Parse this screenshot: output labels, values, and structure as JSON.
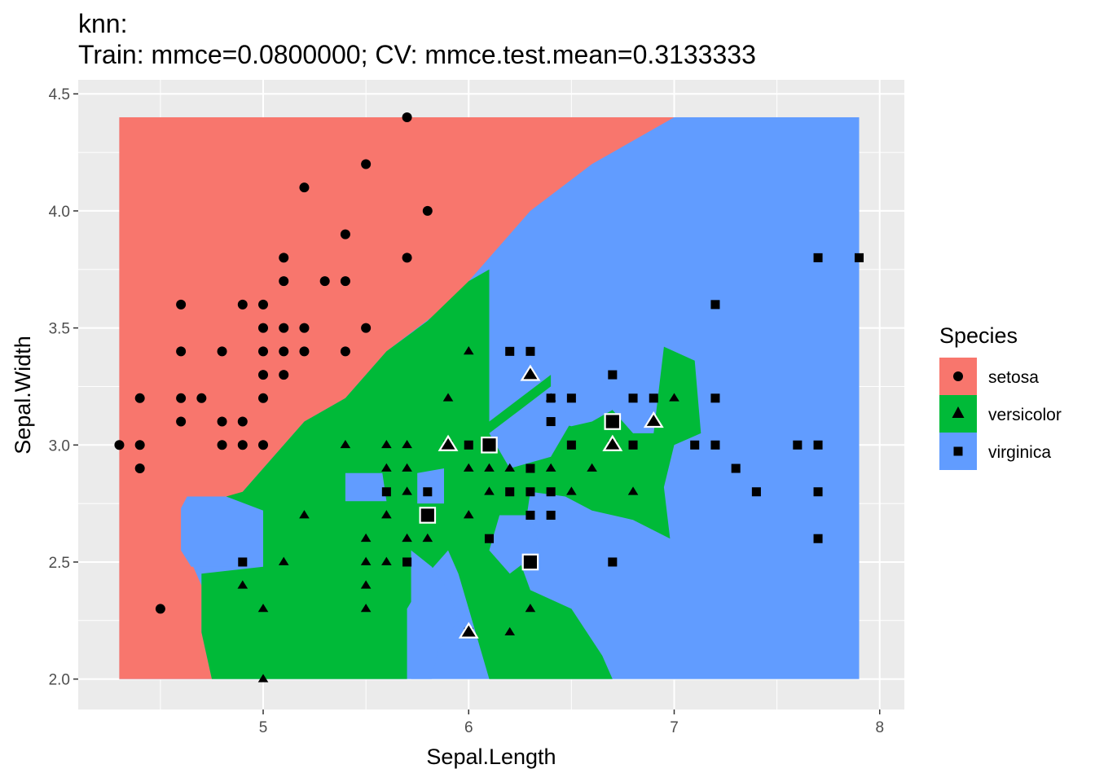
{
  "chart_data": {
    "type": "scatter",
    "title": "knn:",
    "subtitle": "Train: mmce=0.0800000; CV: mmce.test.mean=0.3133333",
    "xlabel": "Sepal.Length",
    "ylabel": "Sepal.Width",
    "xlim": [
      4.1,
      8.12
    ],
    "ylim": [
      1.87,
      4.56
    ],
    "xticks": [
      5,
      6,
      7,
      8
    ],
    "xtick_labels": [
      "5",
      "6",
      "7",
      "8"
    ],
    "yticks": [
      2.0,
      2.5,
      3.0,
      3.5,
      4.0,
      4.5
    ],
    "ytick_labels": [
      "2.0",
      "2.5",
      "3.0",
      "3.5",
      "4.0",
      "4.5"
    ],
    "grid": true,
    "legend": {
      "title": "Species",
      "position": "right",
      "entries": [
        {
          "label": "setosa",
          "color": "#F8766D",
          "shape": "circle"
        },
        {
          "label": "versicolor",
          "color": "#00BA38",
          "shape": "triangle"
        },
        {
          "label": "virginica",
          "color": "#619CFF",
          "shape": "square"
        }
      ]
    },
    "colors": {
      "setosa": "#F8766D",
      "versicolor": "#00BA38",
      "virginica": "#619CFF",
      "panel": "#EBEBEB",
      "grid": "#FFFFFF"
    },
    "decision_regions": {
      "x_range": [
        4.3,
        7.9
      ],
      "y_range": [
        2.0,
        4.4
      ],
      "setosa_boundary": [
        [
          7.0,
          4.4
        ],
        [
          6.6,
          4.2
        ],
        [
          6.3,
          4.0
        ],
        [
          6.1,
          3.8
        ],
        [
          5.9,
          3.6
        ],
        [
          5.6,
          3.4
        ],
        [
          5.4,
          3.2
        ],
        [
          5.2,
          3.1
        ],
        [
          5.0,
          2.9
        ],
        [
          4.9,
          2.8
        ],
        [
          4.7,
          2.7
        ],
        [
          4.6,
          2.6
        ],
        [
          4.7,
          2.4
        ],
        [
          4.7,
          2.2
        ],
        [
          4.75,
          2.0
        ]
      ],
      "setosa_holes": [
        [
          [
            4.6,
            2.73
          ],
          [
            4.63,
            2.78
          ],
          [
            4.82,
            2.78
          ],
          [
            5.0,
            2.72
          ],
          [
            5.0,
            2.48
          ],
          [
            4.65,
            2.48
          ],
          [
            4.6,
            2.55
          ]
        ]
      ],
      "versicolor_regions": [
        [
          [
            4.75,
            2.0
          ],
          [
            4.7,
            2.2
          ],
          [
            4.7,
            2.45
          ],
          [
            5.0,
            2.48
          ],
          [
            5.0,
            2.72
          ],
          [
            4.82,
            2.78
          ],
          [
            4.9,
            2.8
          ],
          [
            5.0,
            2.9
          ],
          [
            5.2,
            3.1
          ],
          [
            5.4,
            3.2
          ],
          [
            5.6,
            3.4
          ],
          [
            5.8,
            3.53
          ],
          [
            6.0,
            3.7
          ],
          [
            6.1,
            3.75
          ],
          [
            6.1,
            3.1
          ],
          [
            6.25,
            3.2
          ],
          [
            6.4,
            3.3
          ],
          [
            6.4,
            3.1
          ],
          [
            6.5,
            3.08
          ],
          [
            6.6,
            3.1
          ],
          [
            6.7,
            3.15
          ],
          [
            6.8,
            3.05
          ],
          [
            6.9,
            3.05
          ],
          [
            6.95,
            3.42
          ],
          [
            7.1,
            3.36
          ],
          [
            7.13,
            3.05
          ],
          [
            7.0,
            3.0
          ],
          [
            6.95,
            2.82
          ],
          [
            6.98,
            2.6
          ],
          [
            6.8,
            2.68
          ],
          [
            6.6,
            2.72
          ],
          [
            6.47,
            2.78
          ],
          [
            6.3,
            2.8
          ],
          [
            6.25,
            2.5
          ],
          [
            6.3,
            2.38
          ],
          [
            6.5,
            2.3
          ],
          [
            6.65,
            2.1
          ],
          [
            6.7,
            2.0
          ],
          [
            6.1,
            2.0
          ],
          [
            6.0,
            2.3
          ],
          [
            5.95,
            2.45
          ],
          [
            5.9,
            2.55
          ],
          [
            5.8,
            2.45
          ],
          [
            5.7,
            2.3
          ],
          [
            5.7,
            2.0
          ]
        ],
        [
          [
            5.75,
            2.83
          ],
          [
            5.9,
            2.98
          ],
          [
            6.05,
            2.98
          ],
          [
            6.05,
            2.75
          ],
          [
            5.95,
            2.62
          ],
          [
            5.85,
            2.62
          ],
          [
            5.75,
            2.7
          ]
        ]
      ],
      "virginica_islands": [
        [
          [
            5.75,
            2.88
          ],
          [
            5.88,
            2.9
          ],
          [
            5.88,
            2.75
          ],
          [
            5.75,
            2.75
          ]
        ],
        [
          [
            5.4,
            2.88
          ],
          [
            5.58,
            2.88
          ],
          [
            5.6,
            2.76
          ],
          [
            5.4,
            2.76
          ]
        ],
        [
          [
            5.72,
            2.55
          ],
          [
            5.72,
            2.0
          ],
          [
            5.82,
            2.0
          ],
          [
            5.85,
            2.12
          ],
          [
            5.95,
            2.25
          ],
          [
            5.9,
            2.38
          ],
          [
            5.82,
            2.48
          ]
        ],
        [
          [
            6.15,
            2.7
          ],
          [
            6.3,
            2.7
          ],
          [
            6.35,
            2.55
          ],
          [
            6.2,
            2.45
          ],
          [
            6.1,
            2.55
          ]
        ],
        [
          [
            6.1,
            3.05
          ],
          [
            6.25,
            3.15
          ],
          [
            6.4,
            3.25
          ],
          [
            6.5,
            3.1
          ],
          [
            6.4,
            2.95
          ],
          [
            6.2,
            2.9
          ]
        ]
      ]
    },
    "series": [
      {
        "name": "setosa",
        "shape": "circle",
        "points": [
          [
            4.3,
            3.0
          ],
          [
            4.4,
            3.2
          ],
          [
            4.4,
            3.0
          ],
          [
            4.4,
            2.9
          ],
          [
            4.5,
            2.3
          ],
          [
            4.6,
            3.6
          ],
          [
            4.6,
            3.4
          ],
          [
            4.6,
            3.2
          ],
          [
            4.6,
            3.1
          ],
          [
            4.7,
            3.2
          ],
          [
            4.8,
            3.4
          ],
          [
            4.8,
            3.1
          ],
          [
            4.8,
            3.0
          ],
          [
            4.9,
            3.6
          ],
          [
            4.9,
            3.1
          ],
          [
            4.9,
            3.0
          ],
          [
            5.0,
            3.6
          ],
          [
            5.0,
            3.5
          ],
          [
            5.0,
            3.4
          ],
          [
            5.0,
            3.3
          ],
          [
            5.0,
            3.2
          ],
          [
            5.0,
            3.0
          ],
          [
            5.1,
            3.8
          ],
          [
            5.1,
            3.7
          ],
          [
            5.1,
            3.5
          ],
          [
            5.1,
            3.4
          ],
          [
            5.1,
            3.3
          ],
          [
            5.2,
            4.1
          ],
          [
            5.2,
            3.5
          ],
          [
            5.2,
            3.4
          ],
          [
            5.3,
            3.7
          ],
          [
            5.4,
            3.9
          ],
          [
            5.4,
            3.7
          ],
          [
            5.4,
            3.4
          ],
          [
            5.5,
            4.2
          ],
          [
            5.5,
            3.5
          ],
          [
            5.7,
            4.4
          ],
          [
            5.7,
            3.8
          ],
          [
            5.8,
            4.0
          ]
        ]
      },
      {
        "name": "versicolor",
        "shape": "triangle",
        "points": [
          [
            4.9,
            2.4
          ],
          [
            5.0,
            2.3
          ],
          [
            5.0,
            2.0
          ],
          [
            5.1,
            2.5
          ],
          [
            5.2,
            2.7
          ],
          [
            5.4,
            3.0
          ],
          [
            5.5,
            2.6
          ],
          [
            5.5,
            2.5
          ],
          [
            5.5,
            2.4
          ],
          [
            5.5,
            2.3
          ],
          [
            5.6,
            3.0
          ],
          [
            5.6,
            2.9
          ],
          [
            5.6,
            2.7
          ],
          [
            5.6,
            2.5
          ],
          [
            5.7,
            3.0
          ],
          [
            5.7,
            2.9
          ],
          [
            5.7,
            2.8
          ],
          [
            5.7,
            2.6
          ],
          [
            5.8,
            2.7
          ],
          [
            5.8,
            2.6
          ],
          [
            5.9,
            3.2
          ],
          [
            5.9,
            3.0
          ],
          [
            6.0,
            3.4
          ],
          [
            6.0,
            2.9
          ],
          [
            6.0,
            2.7
          ],
          [
            6.0,
            2.2
          ],
          [
            6.1,
            3.0
          ],
          [
            6.1,
            2.9
          ],
          [
            6.1,
            2.8
          ],
          [
            6.2,
            2.9
          ],
          [
            6.2,
            2.2
          ],
          [
            6.3,
            3.3
          ],
          [
            6.3,
            2.3
          ],
          [
            6.4,
            3.2
          ],
          [
            6.4,
            2.9
          ],
          [
            6.5,
            2.8
          ],
          [
            6.6,
            2.9
          ],
          [
            6.7,
            3.0
          ],
          [
            6.8,
            2.8
          ],
          [
            6.9,
            3.1
          ],
          [
            7.0,
            3.2
          ]
        ]
      },
      {
        "name": "virginica",
        "shape": "square",
        "points": [
          [
            4.9,
            2.5
          ],
          [
            5.6,
            2.8
          ],
          [
            5.7,
            2.5
          ],
          [
            5.8,
            2.8
          ],
          [
            5.8,
            2.7
          ],
          [
            5.9,
            3.0
          ],
          [
            6.0,
            3.0
          ],
          [
            6.0,
            2.2
          ],
          [
            6.1,
            3.0
          ],
          [
            6.1,
            2.6
          ],
          [
            6.2,
            3.4
          ],
          [
            6.2,
            2.8
          ],
          [
            6.3,
            3.4
          ],
          [
            6.3,
            2.9
          ],
          [
            6.3,
            2.8
          ],
          [
            6.3,
            2.7
          ],
          [
            6.3,
            2.5
          ],
          [
            6.4,
            3.2
          ],
          [
            6.4,
            3.1
          ],
          [
            6.4,
            2.8
          ],
          [
            6.4,
            2.7
          ],
          [
            6.5,
            3.2
          ],
          [
            6.5,
            3.0
          ],
          [
            6.7,
            3.3
          ],
          [
            6.7,
            3.1
          ],
          [
            6.7,
            3.0
          ],
          [
            6.7,
            2.5
          ],
          [
            6.8,
            3.2
          ],
          [
            6.8,
            3.0
          ],
          [
            6.9,
            3.2
          ],
          [
            7.1,
            3.0
          ],
          [
            7.2,
            3.6
          ],
          [
            7.2,
            3.2
          ],
          [
            7.2,
            3.0
          ],
          [
            7.3,
            2.9
          ],
          [
            7.4,
            2.8
          ],
          [
            7.6,
            3.0
          ],
          [
            7.7,
            3.8
          ],
          [
            7.7,
            3.0
          ],
          [
            7.7,
            2.8
          ],
          [
            7.7,
            2.6
          ],
          [
            7.9,
            3.8
          ]
        ]
      }
    ],
    "misclassified": [
      {
        "species": "versicolor",
        "shape": "triangle",
        "points": [
          [
            5.9,
            3.0
          ],
          [
            6.0,
            2.2
          ],
          [
            6.3,
            3.3
          ],
          [
            6.7,
            3.0
          ],
          [
            6.9,
            3.1
          ]
        ]
      },
      {
        "species": "virginica",
        "shape": "square",
        "points": [
          [
            5.8,
            2.7
          ],
          [
            6.1,
            3.0
          ],
          [
            6.3,
            2.5
          ],
          [
            6.7,
            3.1
          ]
        ]
      }
    ]
  }
}
